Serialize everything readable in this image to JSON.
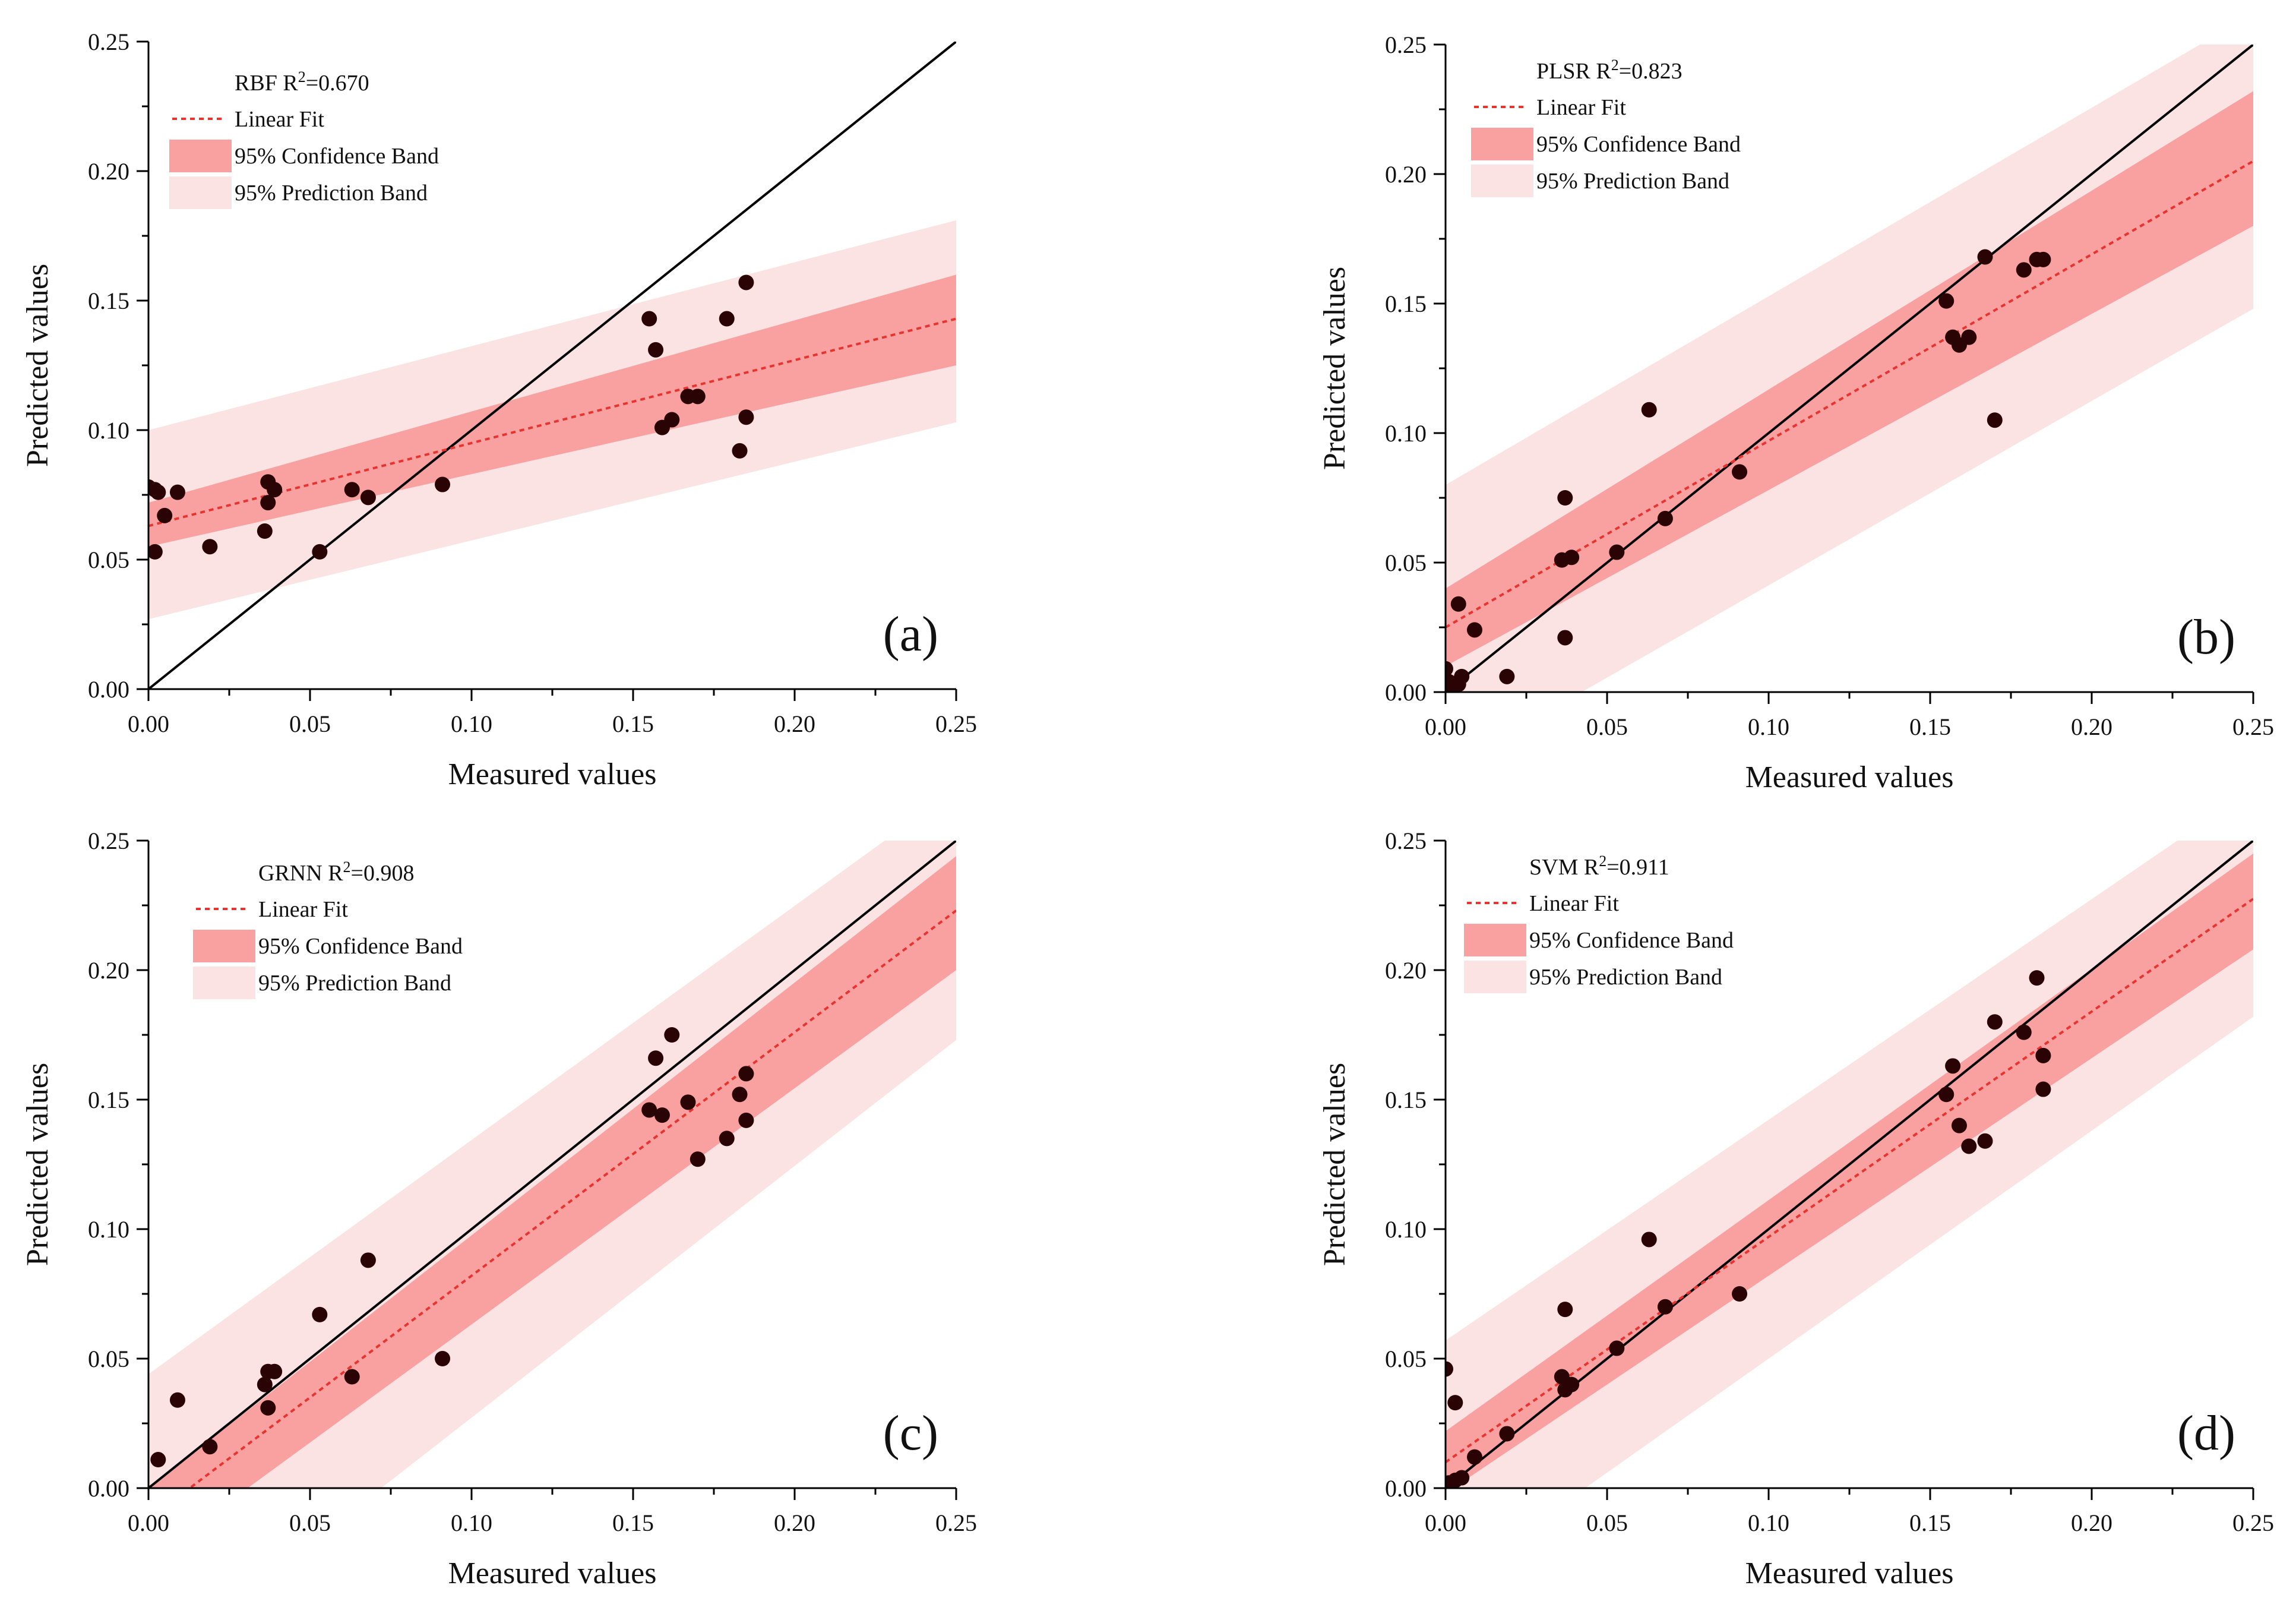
{
  "figure": {
    "tick_labels": [
      "0.00",
      "0.05",
      "0.10",
      "0.15",
      "0.20",
      "0.25"
    ],
    "legend_labels": {
      "fit": "Linear Fit",
      "confidence": "95% Confidence Band",
      "prediction": "95% Prediction Band"
    },
    "colors": {
      "fit_line": "#e8332f",
      "confidence_band": "#f9a0a0",
      "prediction_band": "#fce3e3",
      "points": "#2a0404",
      "identity_line": "#000000"
    }
  },
  "chart_data": [
    {
      "type": "scatter",
      "panel_label": "(a)",
      "model": "RBF",
      "r2_text": "R²=0.670",
      "xlabel": "Measured values",
      "ylabel": "Predicted values",
      "xlim": [
        0,
        0.25
      ],
      "ylim": [
        0,
        0.25
      ],
      "xticks": [
        0,
        0.05,
        0.1,
        0.15,
        0.2,
        0.25
      ],
      "yticks": [
        0,
        0.05,
        0.1,
        0.15,
        0.2,
        0.25
      ],
      "legend_position": "top-left",
      "fit": {
        "intercept": 0.063,
        "slope": 0.32
      },
      "confidence_band": {
        "lower": [
          0.055,
          0.125
        ],
        "upper": [
          0.072,
          0.16
        ]
      },
      "prediction_band": {
        "lower": [
          0.027,
          0.103
        ],
        "upper": [
          0.1,
          0.181
        ]
      },
      "points": [
        [
          0.0,
          0.078
        ],
        [
          0.002,
          0.077
        ],
        [
          0.003,
          0.076
        ],
        [
          0.002,
          0.053
        ],
        [
          0.005,
          0.067
        ],
        [
          0.009,
          0.076
        ],
        [
          0.019,
          0.055
        ],
        [
          0.036,
          0.061
        ],
        [
          0.037,
          0.072
        ],
        [
          0.037,
          0.08
        ],
        [
          0.039,
          0.077
        ],
        [
          0.053,
          0.053
        ],
        [
          0.063,
          0.077
        ],
        [
          0.068,
          0.074
        ],
        [
          0.091,
          0.079
        ],
        [
          0.155,
          0.143
        ],
        [
          0.157,
          0.131
        ],
        [
          0.159,
          0.101
        ],
        [
          0.162,
          0.104
        ],
        [
          0.167,
          0.113
        ],
        [
          0.17,
          0.113
        ],
        [
          0.179,
          0.143
        ],
        [
          0.183,
          0.092
        ],
        [
          0.185,
          0.105
        ],
        [
          0.185,
          0.157
        ]
      ]
    },
    {
      "type": "scatter",
      "panel_label": "(b)",
      "model": "PLSR",
      "r2_text": "R²=0.823",
      "xlabel": "Measured values",
      "ylabel": "Predicted values",
      "xlim": [
        0,
        0.25
      ],
      "ylim": [
        0,
        0.25
      ],
      "xticks": [
        0,
        0.05,
        0.1,
        0.15,
        0.2,
        0.25
      ],
      "yticks": [
        0,
        0.05,
        0.1,
        0.15,
        0.2,
        0.25
      ],
      "legend_position": "top-left",
      "fit": {
        "intercept": 0.025,
        "slope": 0.72
      },
      "confidence_band": {
        "lower": [
          0.01,
          0.18
        ],
        "upper": [
          0.04,
          0.232
        ]
      },
      "prediction_band": {
        "lower": [
          -0.03,
          0.148
        ],
        "upper": [
          0.08,
          0.262
        ]
      },
      "points": [
        [
          0.0,
          0.009
        ],
        [
          0.001,
          0.004
        ],
        [
          0.002,
          0.001
        ],
        [
          0.004,
          0.003
        ],
        [
          0.004,
          0.034
        ],
        [
          0.005,
          0.006
        ],
        [
          0.009,
          0.024
        ],
        [
          0.019,
          0.006
        ],
        [
          0.036,
          0.051
        ],
        [
          0.037,
          0.021
        ],
        [
          0.037,
          0.075
        ],
        [
          0.039,
          0.052
        ],
        [
          0.053,
          0.054
        ],
        [
          0.063,
          0.109
        ],
        [
          0.068,
          0.067
        ],
        [
          0.091,
          0.085
        ],
        [
          0.155,
          0.151
        ],
        [
          0.157,
          0.137
        ],
        [
          0.159,
          0.134
        ],
        [
          0.162,
          0.137
        ],
        [
          0.167,
          0.168
        ],
        [
          0.17,
          0.105
        ],
        [
          0.179,
          0.163
        ],
        [
          0.183,
          0.167
        ],
        [
          0.185,
          0.167
        ]
      ]
    },
    {
      "type": "scatter",
      "panel_label": "(c)",
      "model": "GRNN",
      "r2_text": "R²=0.908",
      "xlabel": "Measured values",
      "ylabel": "Predicted values",
      "xlim": [
        0,
        0.25
      ],
      "ylim": [
        0,
        0.25
      ],
      "xticks": [
        0,
        0.05,
        0.1,
        0.15,
        0.2,
        0.25
      ],
      "yticks": [
        0,
        0.05,
        0.1,
        0.15,
        0.2,
        0.25
      ],
      "legend_position": "top-left",
      "fit": {
        "intercept": -0.012,
        "slope": 0.94
      },
      "confidence_band": {
        "lower": [
          -0.028,
          0.2
        ],
        "upper": [
          0.0,
          0.244
        ]
      },
      "prediction_band": {
        "lower": [
          -0.07,
          0.173
        ],
        "upper": [
          0.044,
          0.27
        ]
      },
      "points": [
        [
          0.003,
          0.011
        ],
        [
          0.009,
          0.034
        ],
        [
          0.019,
          0.016
        ],
        [
          0.036,
          0.04
        ],
        [
          0.037,
          0.031
        ],
        [
          0.037,
          0.045
        ],
        [
          0.039,
          0.045
        ],
        [
          0.053,
          0.067
        ],
        [
          0.063,
          0.043
        ],
        [
          0.068,
          0.088
        ],
        [
          0.091,
          0.05
        ],
        [
          0.155,
          0.146
        ],
        [
          0.157,
          0.166
        ],
        [
          0.159,
          0.144
        ],
        [
          0.162,
          0.175
        ],
        [
          0.167,
          0.149
        ],
        [
          0.17,
          0.127
        ],
        [
          0.179,
          0.135
        ],
        [
          0.183,
          0.152
        ],
        [
          0.185,
          0.16
        ],
        [
          0.185,
          0.142
        ]
      ]
    },
    {
      "type": "scatter",
      "panel_label": "(d)",
      "model": "SVM",
      "r2_text": "R²=0.911",
      "xlabel": "Measured values",
      "ylabel": "Predicted values",
      "xlim": [
        0,
        0.25
      ],
      "ylim": [
        0,
        0.25
      ],
      "xticks": [
        0,
        0.05,
        0.1,
        0.15,
        0.2,
        0.25
      ],
      "yticks": [
        0,
        0.05,
        0.1,
        0.15,
        0.2,
        0.25
      ],
      "legend_position": "top-left",
      "fit": {
        "intercept": 0.01,
        "slope": 0.87
      },
      "confidence_band": {
        "lower": [
          -0.002,
          0.208
        ],
        "upper": [
          0.022,
          0.245
        ]
      },
      "prediction_band": {
        "lower": [
          -0.038,
          0.182
        ],
        "upper": [
          0.057,
          0.27
        ]
      },
      "points": [
        [
          0.0,
          0.046
        ],
        [
          0.001,
          0.002
        ],
        [
          0.003,
          0.003
        ],
        [
          0.003,
          0.033
        ],
        [
          0.005,
          0.004
        ],
        [
          0.009,
          0.012
        ],
        [
          0.019,
          0.021
        ],
        [
          0.036,
          0.043
        ],
        [
          0.037,
          0.069
        ],
        [
          0.037,
          0.038
        ],
        [
          0.039,
          0.04
        ],
        [
          0.053,
          0.054
        ],
        [
          0.063,
          0.096
        ],
        [
          0.068,
          0.07
        ],
        [
          0.091,
          0.075
        ],
        [
          0.155,
          0.152
        ],
        [
          0.157,
          0.163
        ],
        [
          0.159,
          0.14
        ],
        [
          0.162,
          0.132
        ],
        [
          0.167,
          0.134
        ],
        [
          0.17,
          0.18
        ],
        [
          0.179,
          0.176
        ],
        [
          0.183,
          0.197
        ],
        [
          0.185,
          0.167
        ],
        [
          0.185,
          0.154
        ]
      ]
    }
  ]
}
